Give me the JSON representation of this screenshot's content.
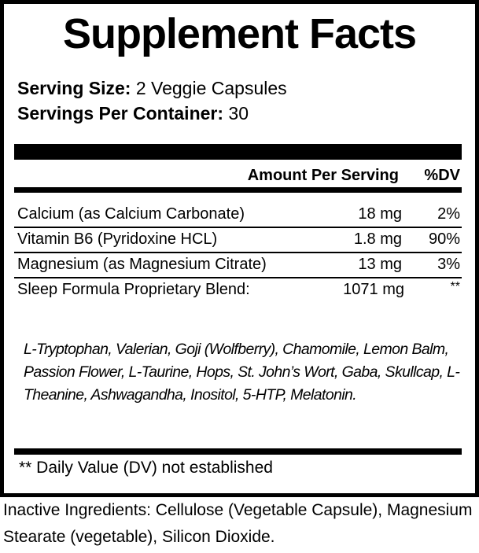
{
  "title": "Supplement Facts",
  "serving": {
    "size_label": "Serving Size:",
    "size_value": "2 Veggie Capsules",
    "per_container_label": "Servings Per Container:",
    "per_container_value": "30"
  },
  "header": {
    "amount": "Amount Per Serving",
    "dv": "%DV"
  },
  "rows": [
    {
      "name": "Calcium (as Calcium Carbonate)",
      "amount": "18 mg",
      "dv": "2%"
    },
    {
      "name": "Vitamin B6 (Pyridoxine HCL)",
      "amount": "1.8 mg",
      "dv": "90%"
    },
    {
      "name": "Magnesium (as Magnesium Citrate)",
      "amount": "13 mg",
      "dv": "3%"
    },
    {
      "name": "Sleep Formula Proprietary Blend:",
      "amount": "1071 mg",
      "dv": "**"
    }
  ],
  "blend_ingredients": "L-Tryptophan, Valerian, Goji (Wolfberry), Chamomile, Lemon Balm, Passion Flower, L-Taurine, Hops, St. John’s Wort, Gaba, Skullcap, L-Theanine, Ashwagandha, Inositol, 5-HTP, Melatonin.",
  "footnote": "** Daily Value (DV) not established",
  "inactive": "Inactive Ingredients: Cellulose (Vegetable Capsule), Magnesium Stearate (vegetable), Silicon Dioxide."
}
